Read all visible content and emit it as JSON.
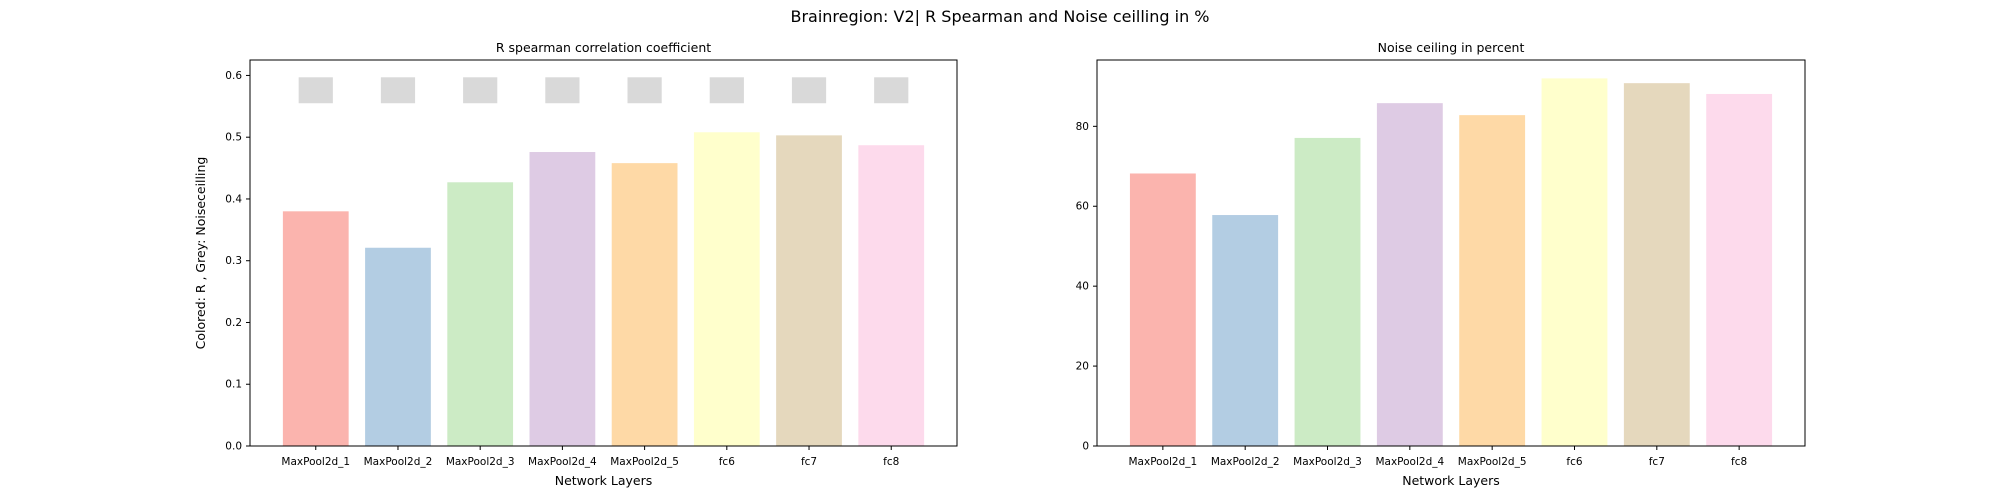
{
  "figure": {
    "suptitle": "Brainregion: V2| R Spearman and Noise ceilling in %"
  },
  "chart_data": [
    {
      "type": "bar",
      "title": "R spearman correlation coefficient",
      "xlabel": "Network Layers",
      "ylabel": "Colored: R , Grey: Noiseceilling",
      "categories": [
        "MaxPool2d_1",
        "MaxPool2d_2",
        "MaxPool2d_3",
        "MaxPool2d_4",
        "MaxPool2d_5",
        "fc6",
        "fc7",
        "fc8"
      ],
      "values": [
        0.38,
        0.321,
        0.427,
        0.476,
        0.458,
        0.508,
        0.503,
        0.487
      ],
      "noise_ceiling": {
        "lower": [
          0.555,
          0.555,
          0.555,
          0.555,
          0.555,
          0.555,
          0.555,
          0.555
        ],
        "upper": [
          0.597,
          0.597,
          0.597,
          0.597,
          0.597,
          0.597,
          0.597,
          0.597
        ],
        "color": "#d9d9d9"
      },
      "ylim": [
        0,
        0.625
      ],
      "yticks": [
        0.0,
        0.1,
        0.2,
        0.3,
        0.4,
        0.5,
        0.6
      ],
      "ytick_labels": [
        "0.0",
        "0.1",
        "0.2",
        "0.3",
        "0.4",
        "0.5",
        "0.6"
      ],
      "colors": [
        "#fbb4ae",
        "#b3cde3",
        "#ccebc5",
        "#decbe4",
        "#fed9a6",
        "#ffffcc",
        "#e5d8bd",
        "#fddaec"
      ],
      "grid": false
    },
    {
      "type": "bar",
      "title": "Noise ceiling in percent",
      "xlabel": "Network Layers",
      "ylabel": "",
      "categories": [
        "MaxPool2d_1",
        "MaxPool2d_2",
        "MaxPool2d_3",
        "MaxPool2d_4",
        "MaxPool2d_5",
        "fc6",
        "fc7",
        "fc8"
      ],
      "values": [
        68.2,
        57.8,
        77.1,
        85.8,
        82.8,
        92.0,
        90.8,
        88.1
      ],
      "ylim": [
        0,
        96.6
      ],
      "yticks": [
        0,
        20,
        40,
        60,
        80
      ],
      "ytick_labels": [
        "0",
        "20",
        "40",
        "60",
        "80"
      ],
      "colors": [
        "#fbb4ae",
        "#b3cde3",
        "#ccebc5",
        "#decbe4",
        "#fed9a6",
        "#ffffcc",
        "#e5d8bd",
        "#fddaec"
      ],
      "grid": false
    }
  ]
}
